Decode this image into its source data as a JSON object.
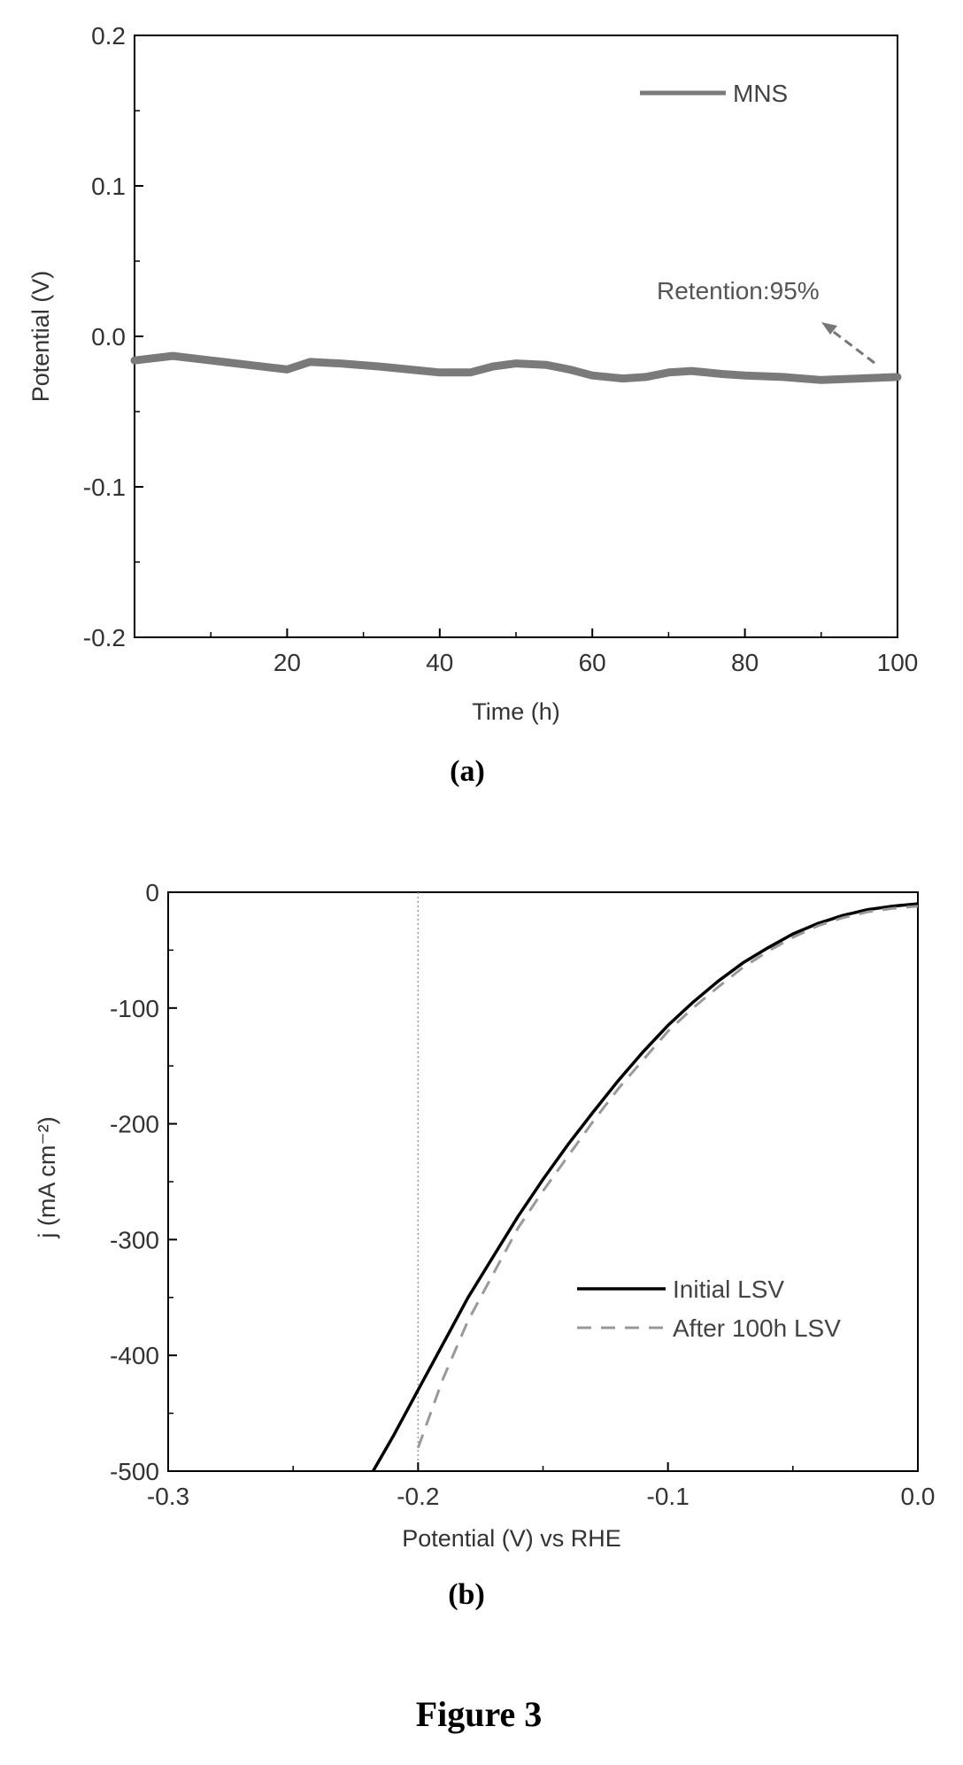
{
  "figure_caption": "Figure 3",
  "chart_data": [
    {
      "type": "line",
      "caption": "(a)",
      "xlabel": "Time (h)",
      "ylabel": "Potential (V)",
      "xlim": [
        0,
        100
      ],
      "ylim": [
        -0.2,
        0.2
      ],
      "xticks": [
        "20",
        "40",
        "60",
        "80",
        "100"
      ],
      "yticks": [
        "0.2",
        "0.1",
        "0.0",
        "-0.1",
        "-0.2"
      ],
      "legend": "top-right",
      "series": [
        {
          "name": "MNS",
          "color": "#7a7a7a",
          "x": [
            0,
            5,
            10,
            15,
            20,
            23,
            27,
            32,
            36,
            40,
            44,
            47,
            50,
            54,
            57,
            60,
            64,
            67,
            70,
            73,
            77,
            80,
            85,
            90,
            95,
            100
          ],
          "y": [
            -0.016,
            -0.013,
            -0.016,
            -0.019,
            -0.022,
            -0.017,
            -0.018,
            -0.02,
            -0.022,
            -0.024,
            -0.024,
            -0.02,
            -0.018,
            -0.019,
            -0.022,
            -0.026,
            -0.028,
            -0.027,
            -0.024,
            -0.023,
            -0.025,
            -0.026,
            -0.027,
            -0.029,
            -0.028,
            -0.027
          ]
        }
      ],
      "annotation": "Retention:95%"
    },
    {
      "type": "line",
      "caption": "(b)",
      "xlabel": "Potential (V) vs RHE",
      "ylabel": "j (mA cm⁻²)",
      "xlim": [
        -0.3,
        0.0
      ],
      "ylim": [
        -500,
        0
      ],
      "xticks": [
        "-0.3",
        "-0.2",
        "-0.1",
        "0.0"
      ],
      "yticks": [
        "0",
        "-100",
        "-200",
        "-300",
        "-400",
        "-500"
      ],
      "legend": "right",
      "reference_line_x": -0.2,
      "series": [
        {
          "name": "Initial LSV",
          "color": "#000000",
          "dash": "solid",
          "x": [
            -0.218,
            -0.21,
            -0.2,
            -0.19,
            -0.18,
            -0.17,
            -0.16,
            -0.15,
            -0.14,
            -0.13,
            -0.12,
            -0.11,
            -0.1,
            -0.09,
            -0.08,
            -0.07,
            -0.06,
            -0.05,
            -0.04,
            -0.03,
            -0.02,
            -0.01,
            0.0
          ],
          "y": [
            -500,
            -470,
            -430,
            -390,
            -350,
            -315,
            -280,
            -248,
            -218,
            -190,
            -163,
            -138,
            -115,
            -95,
            -77,
            -61,
            -48,
            -36,
            -27,
            -20,
            -15,
            -12,
            -10
          ]
        },
        {
          "name": "After 100h LSV",
          "color": "#999999",
          "dash": "dashed",
          "x": [
            -0.2,
            -0.19,
            -0.18,
            -0.17,
            -0.16,
            -0.15,
            -0.14,
            -0.13,
            -0.12,
            -0.11,
            -0.1,
            -0.09,
            -0.08,
            -0.07,
            -0.06,
            -0.05,
            -0.04,
            -0.03,
            -0.02,
            -0.01,
            0.0
          ],
          "y": [
            -480,
            -420,
            -370,
            -330,
            -290,
            -258,
            -228,
            -198,
            -170,
            -145,
            -120,
            -100,
            -82,
            -65,
            -51,
            -39,
            -29,
            -22,
            -17,
            -14,
            -12
          ]
        }
      ]
    }
  ]
}
